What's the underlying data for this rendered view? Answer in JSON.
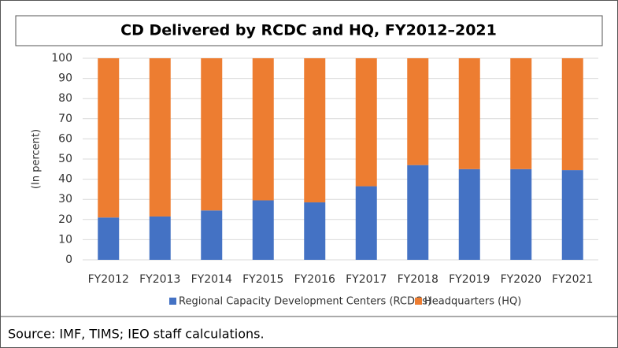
{
  "chart_data": {
    "type": "stacked_bar",
    "title": "CD Delivered by RCDC and HQ, FY2012–2021",
    "ylabel": "(In percent)",
    "source": "Source: IMF, TIMS; IEO staff calculations.",
    "categories": [
      "FY2012",
      "FY2013",
      "FY2014",
      "FY2015",
      "FY2016",
      "FY2017",
      "FY2018",
      "FY2019",
      "FY2020",
      "FY2021"
    ],
    "series": [
      {
        "name": "Regional Capacity Development Centers (RCDCs)",
        "color": "#4472c4",
        "values": [
          21,
          21.5,
          24.5,
          29.5,
          28.5,
          36.5,
          47,
          45,
          45,
          44.5
        ]
      },
      {
        "name": "Headquarters (HQ)",
        "color": "#ed7d31",
        "values": [
          79,
          78.5,
          75.5,
          70.5,
          71.5,
          63.5,
          53,
          55,
          55,
          55.5
        ]
      }
    ],
    "ylim": [
      0,
      100
    ],
    "yticks": [
      0,
      10,
      20,
      30,
      40,
      50,
      60,
      70,
      80,
      90,
      100
    ],
    "grid": true
  }
}
